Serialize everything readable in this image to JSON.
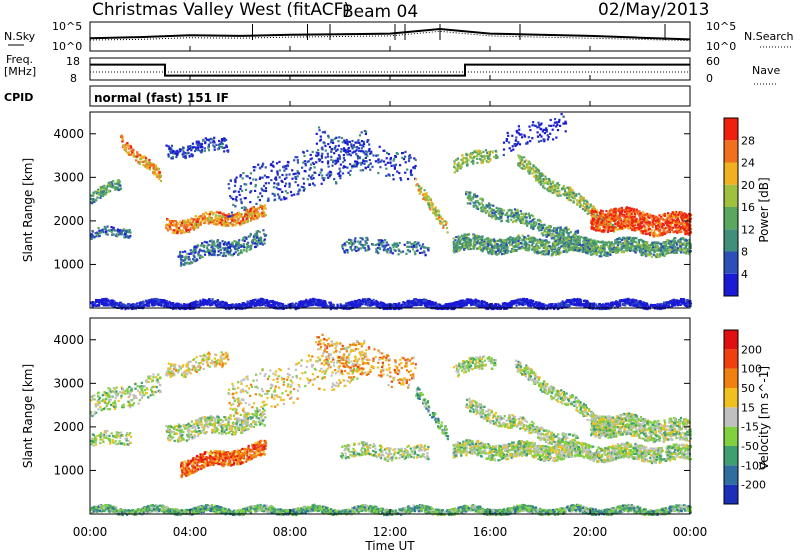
{
  "header": {
    "station": "Christmas Valley West (fitACF)",
    "beam": "Beam 04",
    "date": "02/May/2013"
  },
  "side_labels": {
    "nsky": "N.Sky",
    "nsearch": "N.Search",
    "freq": "Freq.",
    "freq_unit": "[MHz]",
    "nave": "Nave",
    "cpid": "CPID",
    "cpid_value": "normal (fast) 151 IF"
  },
  "noise_ticks_left": [
    "10^5",
    "10^0"
  ],
  "noise_ticks_right": [
    "10^5",
    "10^0"
  ],
  "freq_ticks": [
    "18",
    "8"
  ],
  "nave_ticks": [
    "60",
    "0"
  ],
  "range_ticks": [
    "1000",
    "2000",
    "3000",
    "4000"
  ],
  "range_label": "Slant Range [km]",
  "time_ticks": [
    "00:00",
    "04:00",
    "08:00",
    "12:00",
    "16:00",
    "20:00",
    "00:00"
  ],
  "time_label": "Time UT",
  "chart_data": [
    {
      "type": "line",
      "panel": "noise",
      "x": [
        0,
        2,
        4,
        6,
        8,
        10,
        12,
        14,
        16,
        18,
        20,
        22,
        24
      ],
      "series": [
        {
          "name": "N.Sky",
          "values": [
            2.2,
            2.4,
            2.7,
            2.6,
            2.8,
            2.9,
            3.0,
            3.8,
            3.0,
            2.8,
            2.6,
            2.3,
            2.0
          ]
        },
        {
          "name": "N.Search",
          "values": [
            1.9,
            2.0,
            2.3,
            2.2,
            2.4,
            2.5,
            2.6,
            3.4,
            2.6,
            2.4,
            2.2,
            2.0,
            1.8
          ]
        }
      ]
    },
    {
      "type": "line",
      "panel": "frequency",
      "x": [
        0,
        3,
        3,
        15,
        15,
        24
      ],
      "series": [
        {
          "name": "Freq.",
          "values": [
            15,
            15,
            10,
            10,
            15,
            15
          ]
        }
      ]
    },
    {
      "type": "heatmap",
      "panel": "power",
      "colorbar_label": "Power [dB]",
      "colorbar_ticks": [
        "4",
        "8",
        "12",
        "16",
        "20",
        "24",
        "28"
      ],
      "colorbar_colors": [
        "#1b1bd6",
        "#2f4fb8",
        "#3f8f7a",
        "#5aa860",
        "#a0c040",
        "#f0b020",
        "#f07020",
        "#f02010"
      ],
      "x_range": [
        0,
        24
      ],
      "y_range": [
        0,
        4500
      ]
    },
    {
      "type": "heatmap",
      "panel": "velocity",
      "colorbar_label": "Velocity [m s^-1]",
      "colorbar_ticks": [
        "200",
        "100",
        "50",
        "15",
        "-15",
        "-50",
        "-100",
        "-200"
      ],
      "colorbar_colors": [
        "#1b2fb8",
        "#2f6fa0",
        "#3f9f70",
        "#80d040",
        "#c0c0c0",
        "#f0c020",
        "#f08010",
        "#f04010",
        "#e01010"
      ],
      "x_range": [
        0,
        24
      ],
      "y_range": [
        0,
        4500
      ]
    }
  ]
}
